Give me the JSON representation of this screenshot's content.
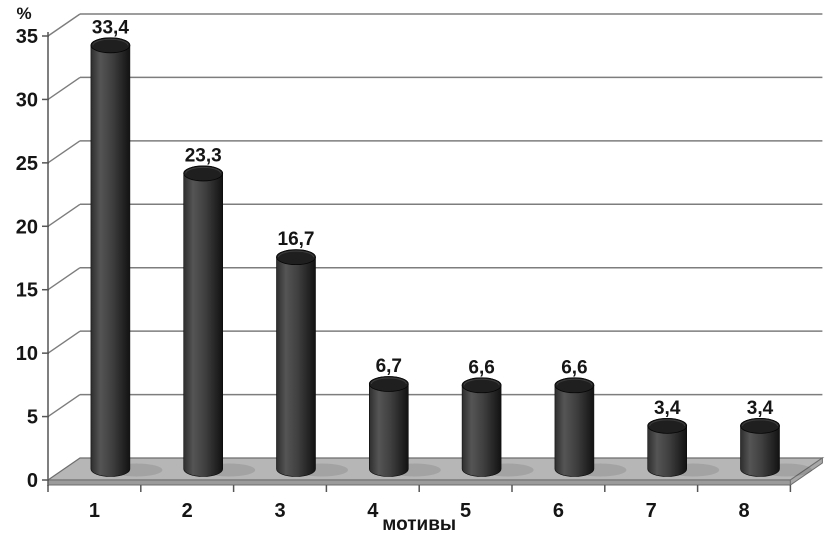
{
  "chart_data": {
    "type": "bar",
    "style": "3d-cylinder",
    "title": "",
    "xlabel": "мотивы",
    "ylabel": "%",
    "categories": [
      "1",
      "2",
      "3",
      "4",
      "5",
      "6",
      "7",
      "8"
    ],
    "values": [
      33.4,
      23.3,
      16.7,
      6.7,
      6.6,
      6.6,
      3.4,
      3.4
    ],
    "data_labels": [
      "33,4",
      "23,3",
      "16,7",
      "6,7",
      "6,6",
      "6,6",
      "3,4",
      "3,4"
    ],
    "yticks": [
      0,
      5,
      10,
      15,
      20,
      25,
      30,
      35
    ],
    "ylim": [
      0,
      35
    ],
    "grid": true,
    "legend": "none",
    "colors": {
      "background": "#ffffff",
      "grid": "#7d7d7d",
      "axis": "#5f5f5f",
      "tick": "#555555",
      "floor_top": "#b6b6b6",
      "floor_front": "#9b9b9b",
      "floor_side": "#a8a8a8",
      "floor_stroke": "#6e6e6e",
      "bar_edge_left": "#2e2e2e",
      "bar_highlight": "#555555",
      "bar_mid": "#3f3f3f",
      "bar_edge_right": "#121212",
      "bar_top": "#1f1f1f",
      "label": "#151515"
    }
  }
}
